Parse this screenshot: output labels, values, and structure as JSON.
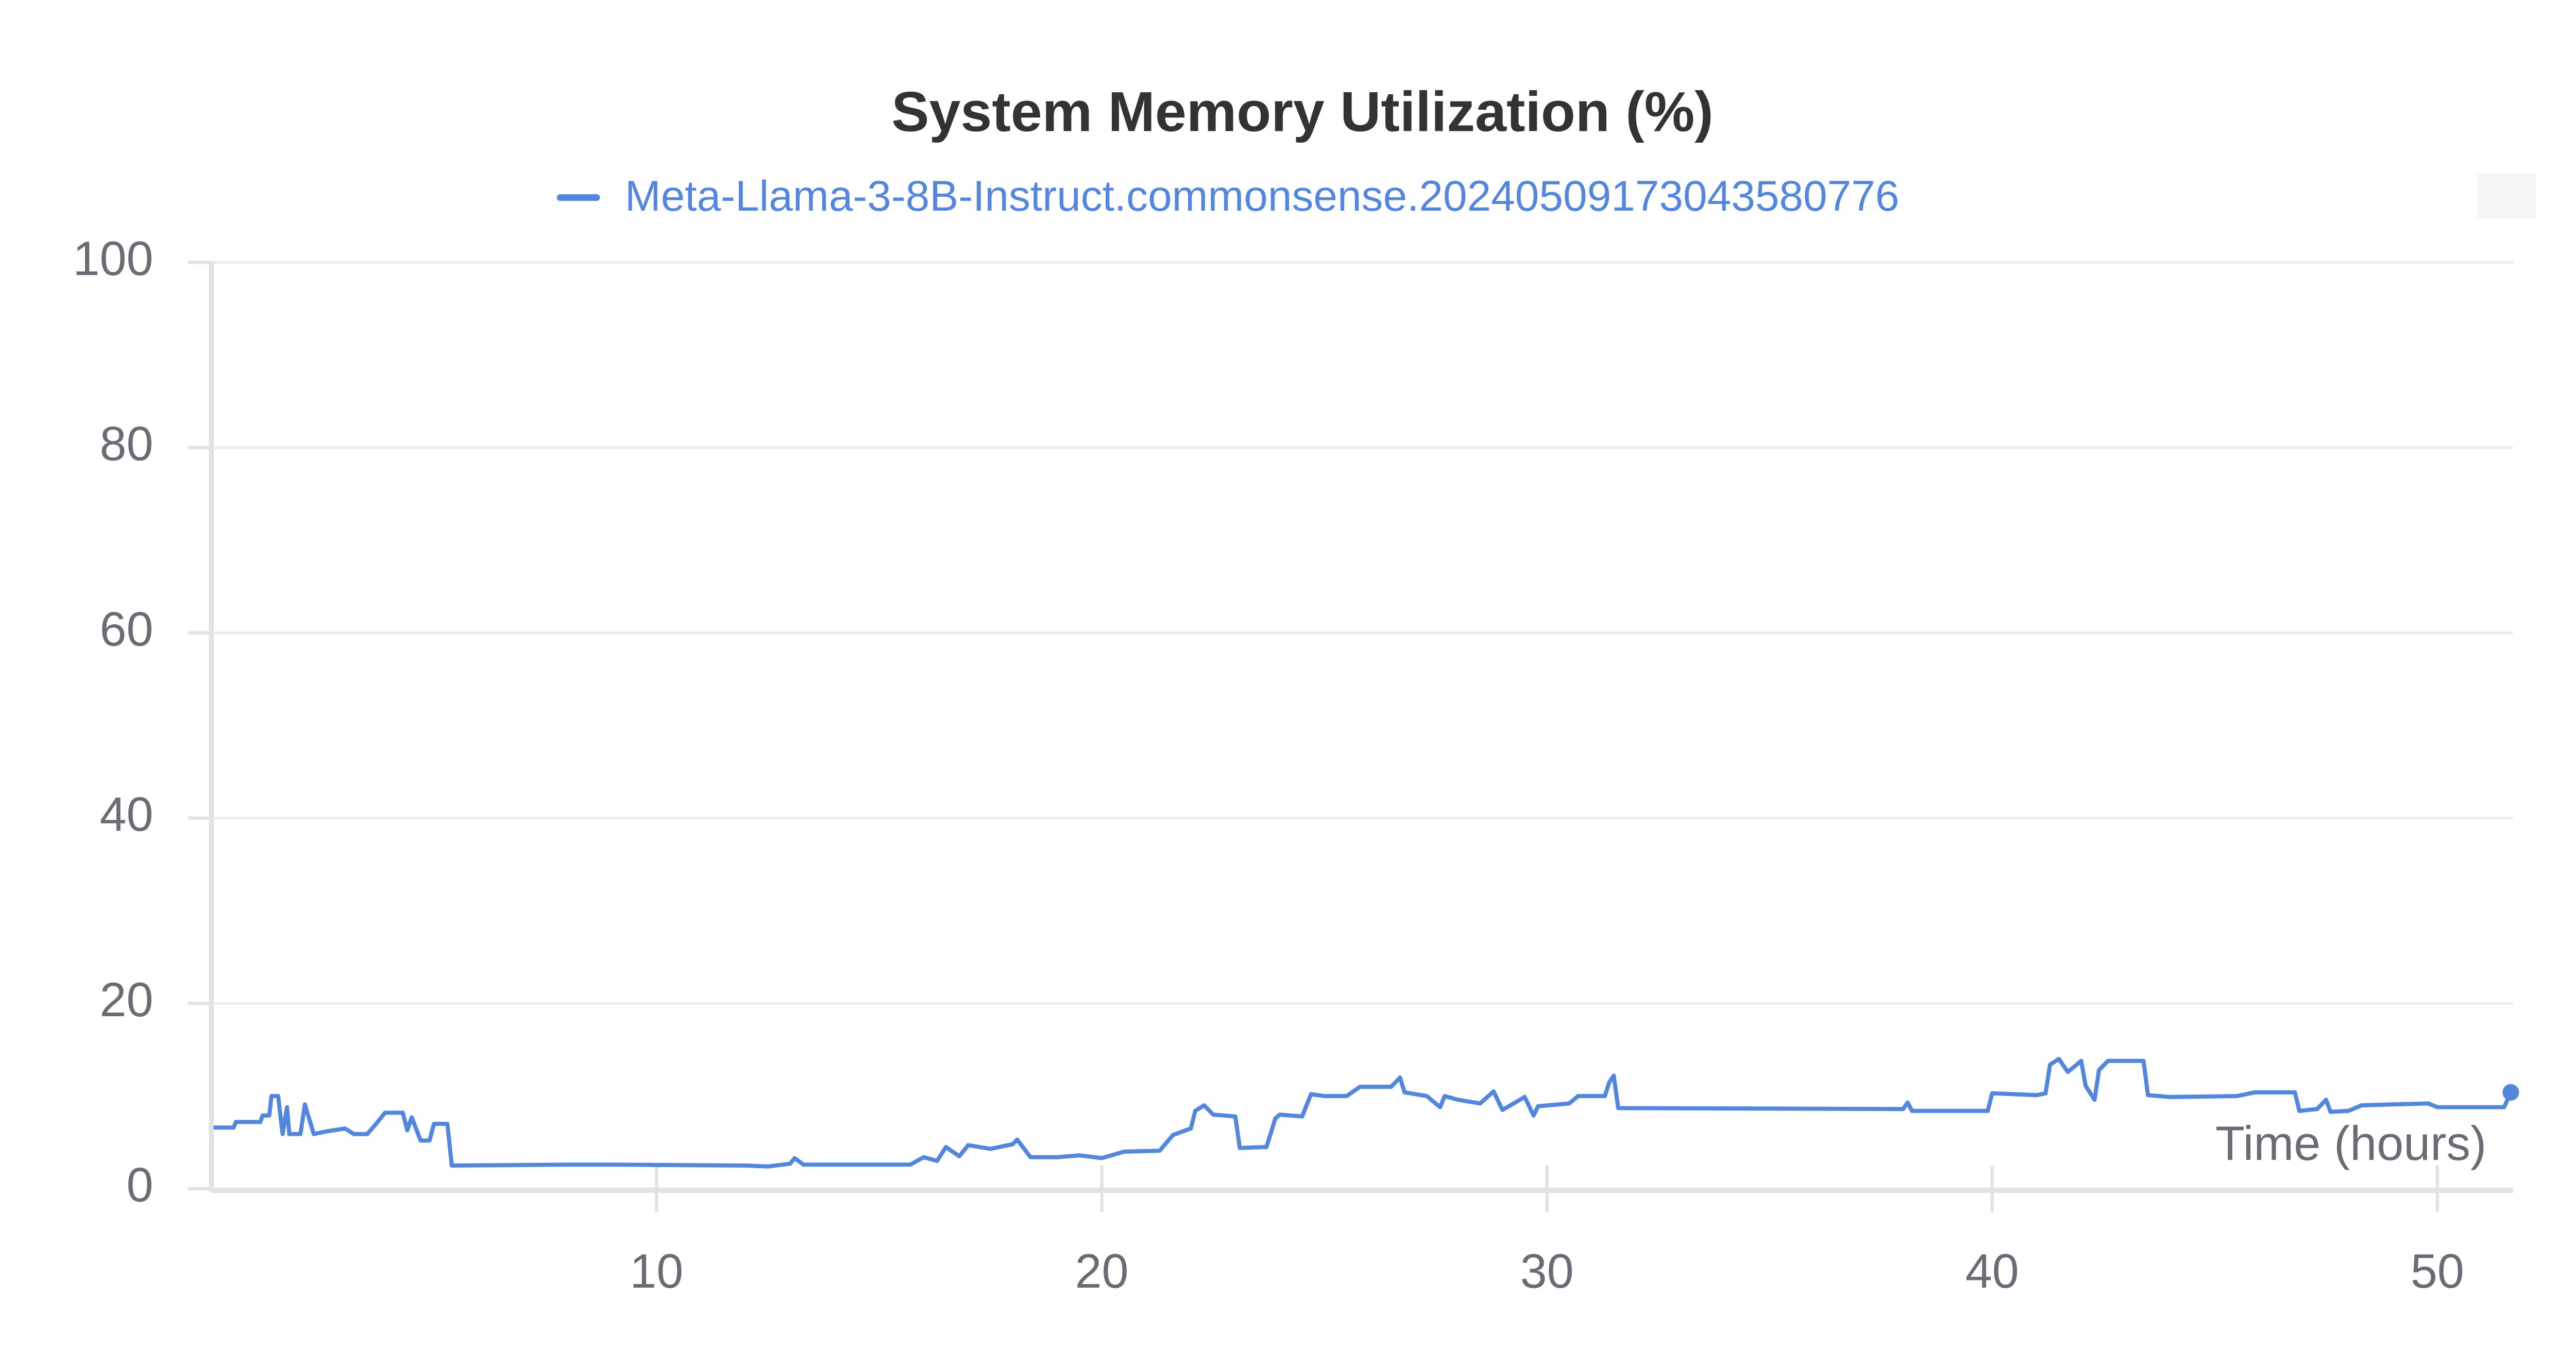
{
  "chart_data": {
    "type": "line",
    "title": "System Memory Utilization (%)",
    "x_label": "Time (hours)",
    "xlim": [
      0,
      51.7
    ],
    "ylim": [
      0,
      100
    ],
    "xticks": [
      10,
      20,
      30,
      40,
      50
    ],
    "yticks": [
      0,
      20,
      40,
      60,
      80,
      100
    ],
    "grid": true,
    "x": [
      0.05,
      0.5,
      0.55,
      1.1,
      1.15,
      1.3,
      1.35,
      1.5,
      1.6,
      1.7,
      1.75,
      2.0,
      2.1,
      2.3,
      2.6,
      3.0,
      3.2,
      3.5,
      3.7,
      3.9,
      4.3,
      4.4,
      4.5,
      4.7,
      4.9,
      5.0,
      5.3,
      5.4,
      8.0,
      9.0,
      12.0,
      12.5,
      13.0,
      13.1,
      13.3,
      15.7,
      16.0,
      16.3,
      16.5,
      16.8,
      17.0,
      17.5,
      18.0,
      18.1,
      18.4,
      19.0,
      19.5,
      20.0,
      20.5,
      21.3,
      21.6,
      22.0,
      22.1,
      22.3,
      22.5,
      23.0,
      23.1,
      23.7,
      23.9,
      24.0,
      24.5,
      24.7,
      25.0,
      25.5,
      25.8,
      26.5,
      26.7,
      26.8,
      27.3,
      27.6,
      27.7,
      28.0,
      28.5,
      28.8,
      29.0,
      29.5,
      29.7,
      29.8,
      30.5,
      30.7,
      31.3,
      31.4,
      31.5,
      31.6,
      38.0,
      38.1,
      38.2,
      39.9,
      40.0,
      41.0,
      41.2,
      41.3,
      41.5,
      41.7,
      42.0,
      42.1,
      42.3,
      42.4,
      42.6,
      43.4,
      43.5,
      44.0,
      45.5,
      45.9,
      46.8,
      46.9,
      47.3,
      47.5,
      47.6,
      48.0,
      48.3,
      49.0,
      49.8,
      50.0,
      51.5,
      51.65
    ],
    "series": [
      {
        "name": "Meta-Llama-3-8B-Instruct.commonsense.20240509173043580776",
        "color": "#5387dd",
        "values": [
          6.6,
          6.6,
          7.2,
          7.2,
          7.9,
          7.9,
          10.0,
          10.0,
          5.9,
          8.8,
          5.9,
          5.9,
          9.1,
          5.9,
          6.2,
          6.5,
          5.9,
          5.9,
          7.0,
          8.2,
          8.2,
          6.3,
          7.7,
          5.2,
          5.2,
          7.0,
          7.0,
          2.5,
          2.6,
          2.6,
          2.5,
          2.4,
          2.7,
          3.3,
          2.6,
          2.6,
          3.4,
          3.0,
          4.5,
          3.5,
          4.7,
          4.3,
          4.8,
          5.3,
          3.4,
          3.4,
          3.6,
          3.3,
          4.0,
          4.1,
          5.8,
          6.5,
          8.4,
          9.0,
          8.0,
          7.8,
          4.4,
          4.5,
          7.6,
          8.0,
          7.8,
          10.2,
          10.0,
          10.0,
          11.0,
          11.0,
          12.0,
          10.4,
          10.0,
          8.8,
          10.0,
          9.6,
          9.2,
          10.5,
          8.5,
          9.9,
          7.9,
          8.9,
          9.2,
          10.0,
          10.0,
          11.5,
          12.2,
          8.7,
          8.6,
          9.3,
          8.4,
          8.4,
          10.3,
          10.1,
          10.3,
          13.4,
          14.0,
          12.6,
          13.8,
          11.1,
          9.6,
          12.8,
          13.8,
          13.8,
          10.1,
          9.9,
          10.0,
          10.4,
          10.4,
          8.4,
          8.6,
          9.6,
          8.3,
          8.4,
          9.0,
          9.1,
          9.2,
          8.8,
          8.8,
          10.4
        ]
      }
    ]
  }
}
